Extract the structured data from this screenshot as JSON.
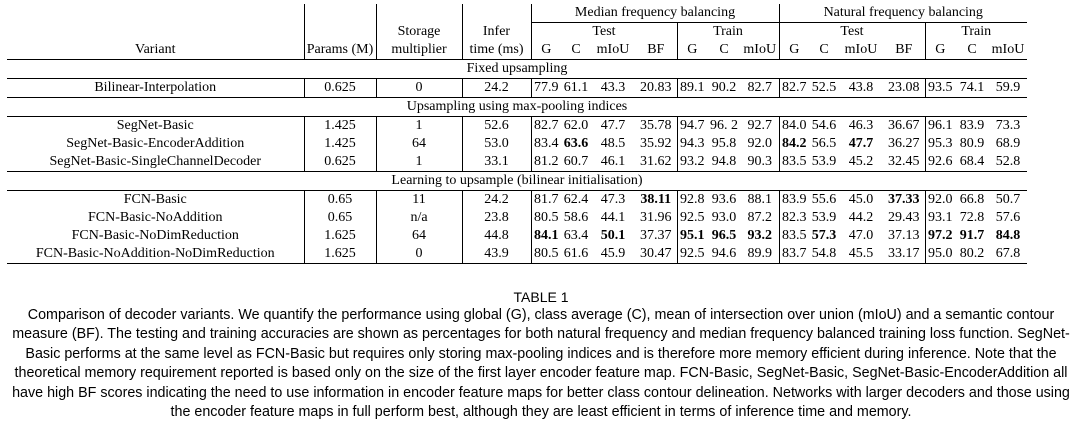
{
  "header": {
    "median_group": "Median frequency balancing",
    "natural_group": "Natural frequency balancing",
    "variant": "Variant",
    "params": "Params (M)",
    "storage_1": "Storage",
    "storage_2": "multiplier",
    "infer_1": "Infer",
    "infer_2": "time (ms)",
    "test": "Test",
    "train": "Train",
    "g": "G",
    "c": "C",
    "miou": "mIoU",
    "bf": "BF"
  },
  "sections": [
    {
      "title": "Fixed upsampling",
      "rows": [
        {
          "variant": "Bilinear-Interpolation",
          "params": "0.625",
          "storage": "0",
          "infer": "24.2",
          "m": [
            "77.9",
            "61.1",
            "43.3",
            "20.83",
            "89.1",
            "90.2",
            "82.7"
          ],
          "n": [
            "82.7",
            "52.5",
            "43.8",
            "23.08",
            "93.5",
            "74.1",
            "59.9"
          ]
        }
      ]
    },
    {
      "title": "Upsampling using max-pooling indices",
      "rows": [
        {
          "variant": "SegNet-Basic",
          "params": "1.425",
          "storage": "1",
          "infer": "52.6",
          "m": [
            "82.7",
            "62.0",
            "47.7",
            "35.78",
            "94.7",
            "96. 2",
            "92.7"
          ],
          "n": [
            "84.0",
            "54.6",
            "46.3",
            "36.67",
            "96.1",
            "83.9",
            "73.3"
          ]
        },
        {
          "variant": "SegNet-Basic-EncoderAddition",
          "params": "1.425",
          "storage": "64",
          "infer": "53.0",
          "m": [
            "83.4",
            "63.6",
            "48.5",
            "35.92",
            "94.3",
            "95.8",
            "92.0"
          ],
          "n": [
            "84.2",
            "56.5",
            "47.7",
            "36.27",
            "95.3",
            "80.9",
            "68.9"
          ]
        },
        {
          "variant": "SegNet-Basic-SingleChannelDecoder",
          "params": "0.625",
          "storage": "1",
          "infer": "33.1",
          "m": [
            "81.2",
            "60.7",
            "46.1",
            "31.62",
            "93.2",
            "94.8",
            "90.3"
          ],
          "n": [
            "83.5",
            "53.9",
            "45.2",
            "32.45",
            "92.6",
            "68.4",
            "52.8"
          ]
        }
      ]
    },
    {
      "title": "Learning to upsample (bilinear initialisation)",
      "rows": [
        {
          "variant": "FCN-Basic",
          "params": "0.65",
          "storage": "11",
          "infer": "24.2",
          "m": [
            "81.7",
            "62.4",
            "47.3",
            "38.11",
            "92.8",
            "93.6",
            "88.1"
          ],
          "n": [
            "83.9",
            "55.6",
            "45.0",
            "37.33",
            "92.0",
            "66.8",
            "50.7"
          ]
        },
        {
          "variant": "FCN-Basic-NoAddition",
          "params": "0.65",
          "storage": "n/a",
          "infer": "23.8",
          "m": [
            "80.5",
            "58.6",
            "44.1",
            "31.96",
            "92.5",
            "93.0",
            "87.2"
          ],
          "n": [
            "82.3",
            "53.9",
            "44.2",
            "29.43",
            "93.1",
            "72.8",
            "57.6"
          ]
        },
        {
          "variant": "FCN-Basic-NoDimReduction",
          "params": "1.625",
          "storage": "64",
          "infer": "44.8",
          "m": [
            "84.1",
            "63.4",
            "50.1",
            "37.37",
            "95.1",
            "96.5",
            "93.2"
          ],
          "n": [
            "83.5",
            "57.3",
            "47.0",
            "37.13",
            "97.2",
            "91.7",
            "84.8"
          ]
        },
        {
          "variant": "FCN-Basic-NoAddition-NoDimReduction",
          "params": "1.625",
          "storage": "0",
          "infer": "43.9",
          "m": [
            "80.5",
            "61.6",
            "45.9",
            "30.47",
            "92.5",
            "94.6",
            "89.9"
          ],
          "n": [
            "83.7",
            "54.8",
            "45.5",
            "33.17",
            "95.0",
            "80.2",
            "67.8"
          ]
        }
      ]
    }
  ],
  "table_label": "TABLE 1",
  "caption": "Comparison of decoder variants. We quantify the performance using global (G), class average (C), mean of intersection over union (mIoU) and a semantic contour measure (BF). The testing and training accuracies are shown as percentages for both natural frequency and median frequency balanced training loss function. SegNet-Basic performs at the same level as FCN-Basic but requires only storing max-pooling indices and is therefore more memory efficient during inference. Note that the theoretical memory requirement reported is based only on the size of the first layer encoder feature map. FCN-Basic, SegNet-Basic, SegNet-Basic-EncoderAddition all have high BF scores indicating the need to use information in encoder feature maps for better class contour delineation. Networks with larger decoders and those using the encoder feature maps in full perform best, although they are least efficient in terms of inference time and memory."
}
